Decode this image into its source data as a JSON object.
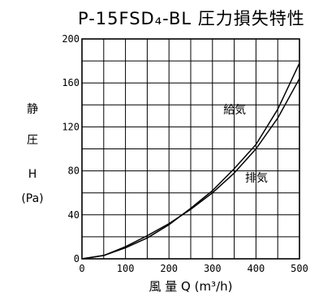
{
  "chart_data": {
    "type": "line",
    "title": "P-15FSD₄-BL  圧力損失特性",
    "ylabel_lines": [
      "静",
      "圧",
      "H",
      "(Pa)"
    ],
    "xlabel": "風 量  Q  (m³/h)",
    "xlim": [
      0,
      500
    ],
    "ylim": [
      0,
      200
    ],
    "x_ticks": [
      0,
      100,
      200,
      300,
      400,
      500
    ],
    "x_tick_labels": [
      "0",
      "100",
      "200",
      "300",
      "400",
      "500"
    ],
    "y_ticks": [
      0,
      40,
      80,
      120,
      160,
      200
    ],
    "y_tick_labels": [
      "0",
      "40",
      "80",
      "120",
      "160",
      "200"
    ],
    "grid": true,
    "x_grid_step": 50,
    "y_grid_step": 20,
    "series": [
      {
        "name": "給気",
        "x": [
          0,
          50,
          100,
          150,
          200,
          250,
          300,
          350,
          400,
          450,
          500
        ],
        "y": [
          0,
          3,
          10,
          19,
          31,
          46,
          62,
          82,
          104,
          136,
          178
        ]
      },
      {
        "name": "排気",
        "x": [
          0,
          50,
          100,
          150,
          200,
          250,
          300,
          350,
          400,
          450,
          500
        ],
        "y": [
          0,
          3,
          11,
          21,
          32,
          45,
          60,
          78,
          100,
          128,
          164
        ]
      }
    ],
    "series_label_anchor": [
      {
        "x": 325,
        "y": 132
      },
      {
        "x": 375,
        "y": 70
      }
    ]
  }
}
